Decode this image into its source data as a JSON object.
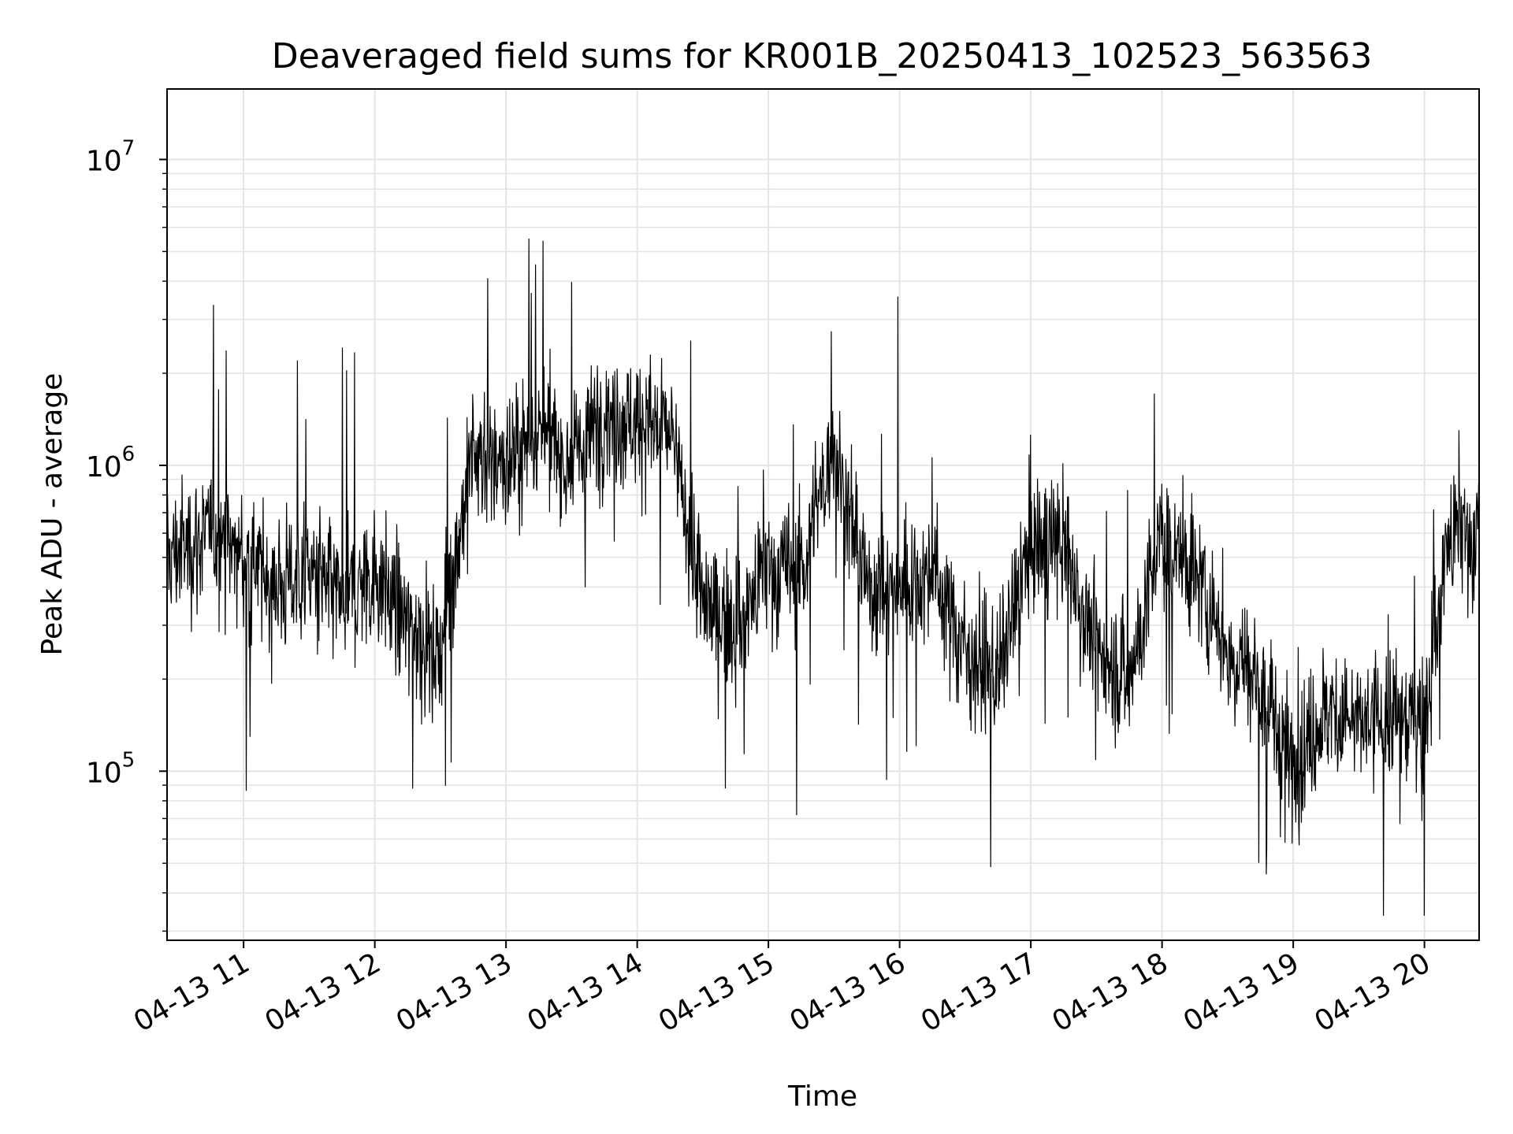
{
  "chart_data": {
    "type": "line",
    "title": "Deaveraged field sums for KR001B_20250413_102523_563563",
    "xlabel": "Time",
    "ylabel": "Peak ADU - average",
    "yscale": "log",
    "ylim": [
      28000,
      17000000
    ],
    "xlim": [
      "2025-04-13 10:25",
      "2025-04-13 20:25"
    ],
    "x_ticks": [
      "04-13 11",
      "04-13 12",
      "04-13 13",
      "04-13 14",
      "04-13 15",
      "04-13 16",
      "04-13 17",
      "04-13 18",
      "04-13 19",
      "04-13 20"
    ],
    "y_ticks": [
      {
        "base": "10",
        "exp": "5",
        "value": 100000
      },
      {
        "base": "10",
        "exp": "6",
        "value": 1000000
      },
      {
        "base": "10",
        "exp": "7",
        "value": 10000000
      }
    ],
    "grid": true,
    "line_color": "#000000",
    "series": [
      {
        "x": [
          "2025-04-13 10:25",
          "2025-04-13 10:45",
          "2025-04-13 11:00",
          "2025-04-13 11:15",
          "2025-04-13 11:30",
          "2025-04-13 11:45",
          "2025-04-13 12:00",
          "2025-04-13 12:15",
          "2025-04-13 12:30",
          "2025-04-13 12:45",
          "2025-04-13 13:00",
          "2025-04-13 13:15",
          "2025-04-13 13:30",
          "2025-04-13 13:45",
          "2025-04-13 14:00",
          "2025-04-13 14:15",
          "2025-04-13 14:30",
          "2025-04-13 14:45",
          "2025-04-13 15:00",
          "2025-04-13 15:15",
          "2025-04-13 15:30",
          "2025-04-13 15:45",
          "2025-04-13 16:00",
          "2025-04-13 16:15",
          "2025-04-13 16:30",
          "2025-04-13 16:45",
          "2025-04-13 17:00",
          "2025-04-13 17:15",
          "2025-04-13 17:30",
          "2025-04-13 17:45",
          "2025-04-13 18:00",
          "2025-04-13 18:15",
          "2025-04-13 18:30",
          "2025-04-13 18:45",
          "2025-04-13 19:00",
          "2025-04-13 19:15",
          "2025-04-13 19:30",
          "2025-04-13 19:45",
          "2025-04-13 20:00",
          "2025-04-13 20:10",
          "2025-04-13 20:25"
        ],
        "values": [
          500000,
          600000,
          500000,
          400000,
          450000,
          350000,
          450000,
          300000,
          250000,
          1100000,
          1000000,
          1300000,
          1000000,
          1500000,
          1400000,
          1300000,
          350000,
          300000,
          450000,
          450000,
          1200000,
          400000,
          400000,
          450000,
          250000,
          200000,
          550000,
          550000,
          250000,
          200000,
          600000,
          450000,
          250000,
          200000,
          100000,
          160000,
          140000,
          150000,
          150000,
          550000,
          600000
        ]
      }
    ]
  }
}
